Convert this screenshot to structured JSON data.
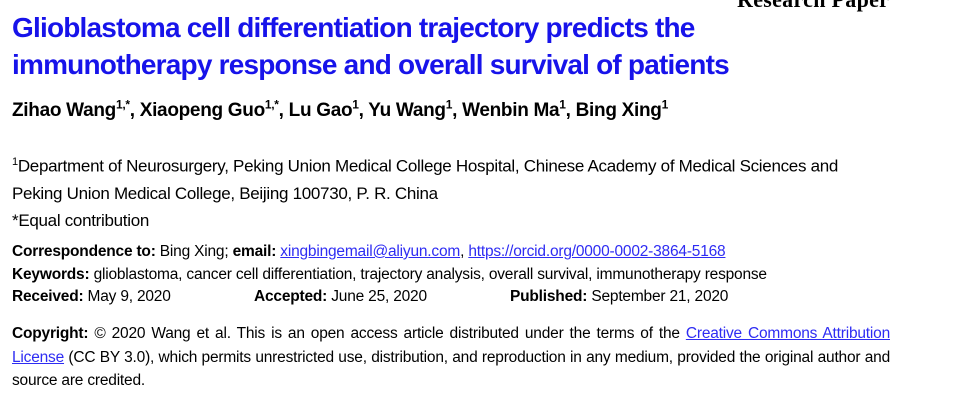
{
  "colors": {
    "title_blue": "#1713ea",
    "link_blue": "#2e2cf3",
    "text_black": "#000000",
    "background": "#ffffff"
  },
  "header": {
    "category_label": "Research Paper"
  },
  "article": {
    "title_line1": "Glioblastoma cell differentiation trajectory predicts the",
    "title_line2": "immunotherapy response and overall survival of patients",
    "authors": [
      {
        "name": "Zihao Wang",
        "sup": "1,*",
        "sep": ","
      },
      {
        "name": "Xiaopeng Guo",
        "sup": "1,*",
        "sep": ","
      },
      {
        "name": "Lu Gao",
        "sup": "1",
        "sep": ","
      },
      {
        "name": "Yu Wang",
        "sup": "1",
        "sep": ","
      },
      {
        "name": "Wenbin Ma",
        "sup": "1",
        "sep": ","
      },
      {
        "name": "Bing Xing",
        "sup": "1",
        "sep": ""
      }
    ],
    "affiliation": {
      "sup": "1",
      "line1": "Department of Neurosurgery, Peking Union Medical College Hospital, Chinese Academy of Medical Sciences and",
      "line2": "Peking Union Medical College, Beijing 100730, P. R. China",
      "equal_contribution": "*Equal contribution"
    },
    "correspondence": {
      "label": "Correspondence to:",
      "name": "Bing Xing;",
      "email_label": "email:",
      "email": "xingbingemail@aliyun.com",
      "separator": ",",
      "orcid": "https://orcid.org/0000-0002-3864-5168"
    },
    "keywords": {
      "label": "Keywords:",
      "text": "glioblastoma, cancer cell differentiation, trajectory analysis, overall survival, immunotherapy response"
    },
    "dates": {
      "received_label": "Received:",
      "received": "May 9, 2020",
      "accepted_label": "Accepted:",
      "accepted": "June 25, 2020",
      "published_label": "Published:",
      "published": "September 21, 2020"
    },
    "copyright": {
      "label": "Copyright:",
      "before_link": "© 2020 Wang et al. This is an open access article distributed under the terms of the",
      "link_text": "Creative Commons Attribution License",
      "after_link": "(CC BY 3.0), which permits unrestricted use, distribution, and reproduction in any medium, provided the original author and source are credited."
    }
  }
}
